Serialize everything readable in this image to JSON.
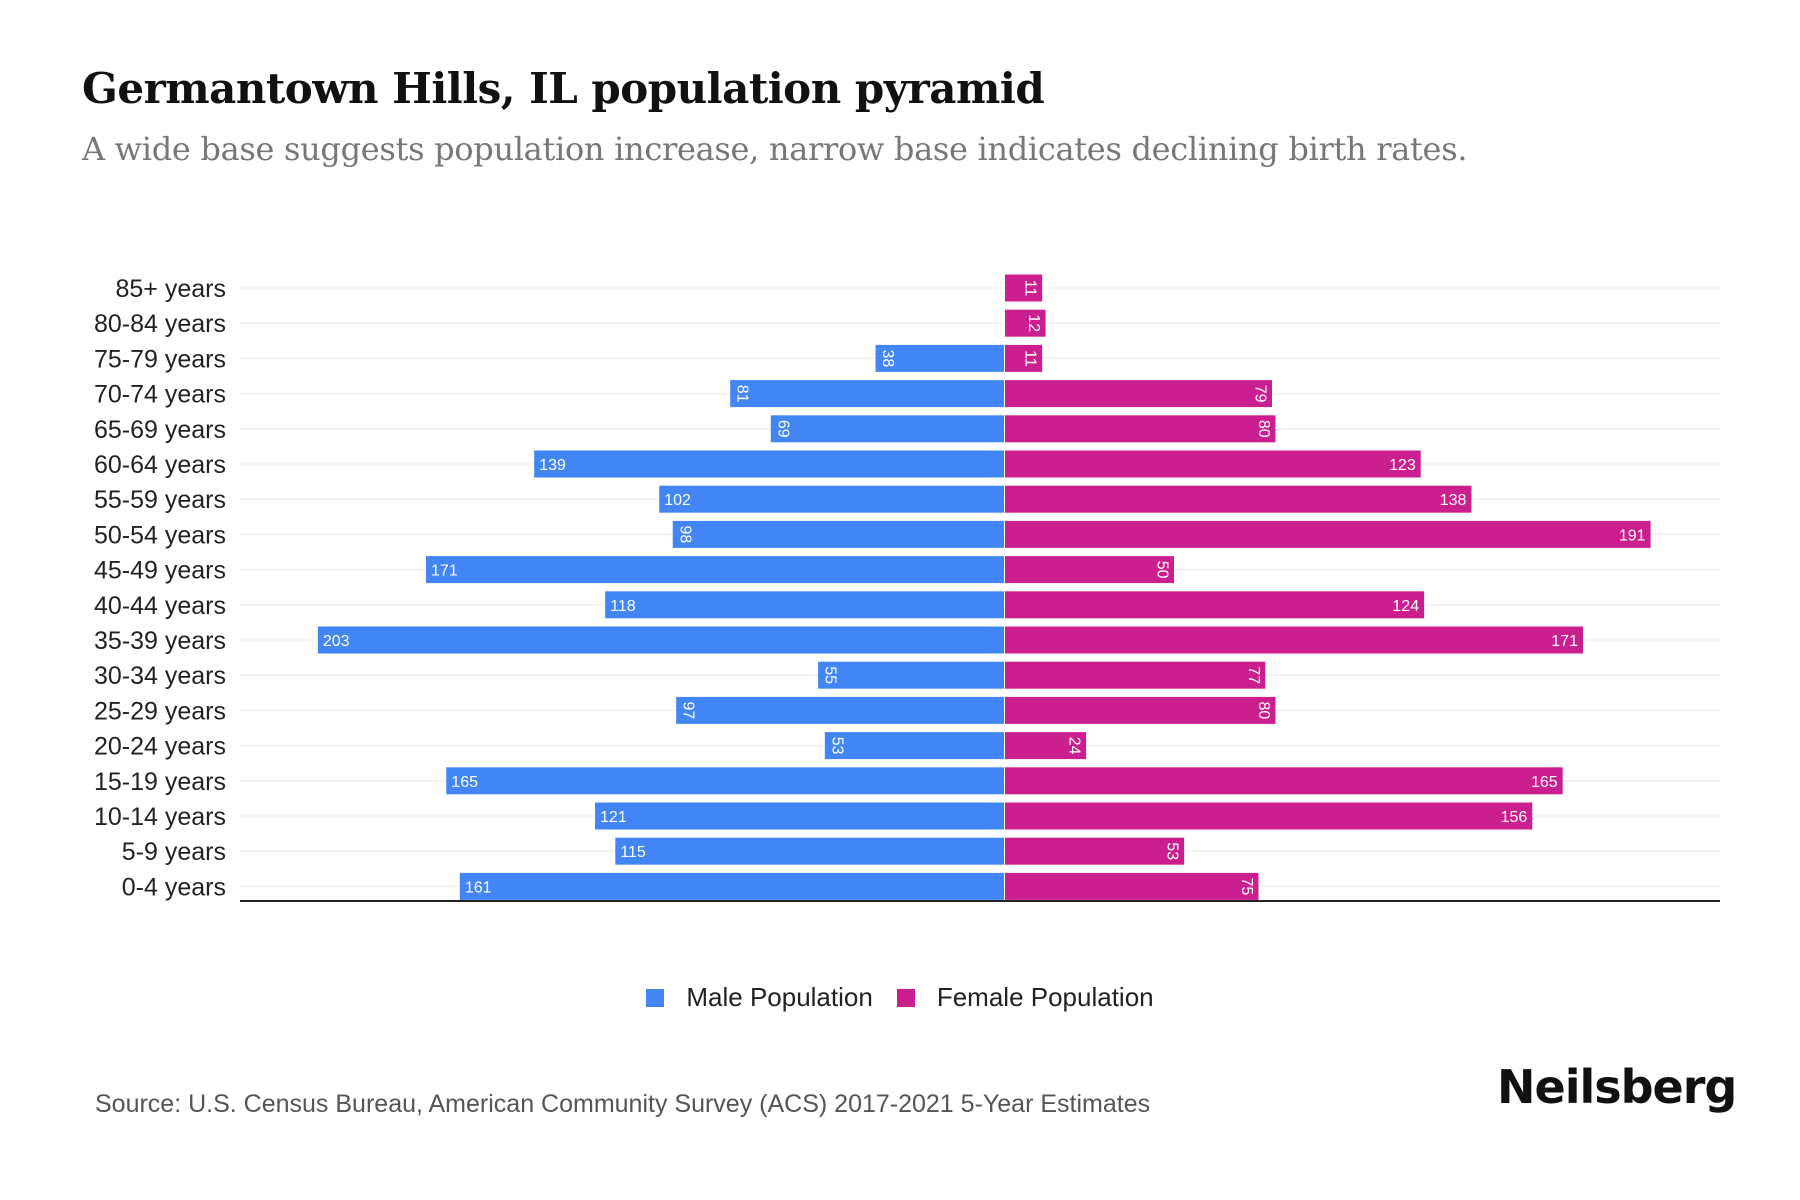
{
  "header": {
    "title": "Germantown Hills, IL population pyramid",
    "subtitle": "A wide base suggests population increase, narrow base indicates declining birth rates."
  },
  "footer": {
    "source": "Source: U.S. Census Bureau, American Community Survey (ACS) 2017-2021 5-Year Estimates",
    "brand": "Neilsberg"
  },
  "colors": {
    "male": "#4285F4",
    "female": "#CC1F8F",
    "grid": "#EEEEEE",
    "axis": "#222222"
  },
  "chart_data": {
    "type": "bar",
    "orientation": "horizontal-diverging",
    "title": "Germantown Hills, IL population pyramid",
    "subtitle": "A wide base suggests population increase, narrow base indicates declining birth rates.",
    "xlabel": "",
    "ylabel": "",
    "categories": [
      "85+ years",
      "80-84 years",
      "75-79 years",
      "70-74 years",
      "65-69 years",
      "60-64 years",
      "55-59 years",
      "50-54 years",
      "45-49 years",
      "40-44 years",
      "35-39 years",
      "30-34 years",
      "25-29 years",
      "20-24 years",
      "15-19 years",
      "10-14 years",
      "5-9 years",
      "0-4 years"
    ],
    "series": [
      {
        "name": "Male Population",
        "side": "left",
        "values": [
          0,
          0,
          38,
          81,
          69,
          139,
          102,
          98,
          171,
          118,
          203,
          55,
          97,
          53,
          165,
          121,
          115,
          161
        ]
      },
      {
        "name": "Female Population",
        "side": "right",
        "values": [
          11,
          12,
          11,
          79,
          80,
          123,
          138,
          191,
          50,
          124,
          171,
          77,
          80,
          24,
          165,
          156,
          53,
          75
        ]
      }
    ],
    "xlim": [
      -203,
      203
    ],
    "grid": true,
    "legend": {
      "position": "bottom",
      "entries": [
        "Male Population",
        "Female Population"
      ]
    },
    "data_labels": true
  }
}
